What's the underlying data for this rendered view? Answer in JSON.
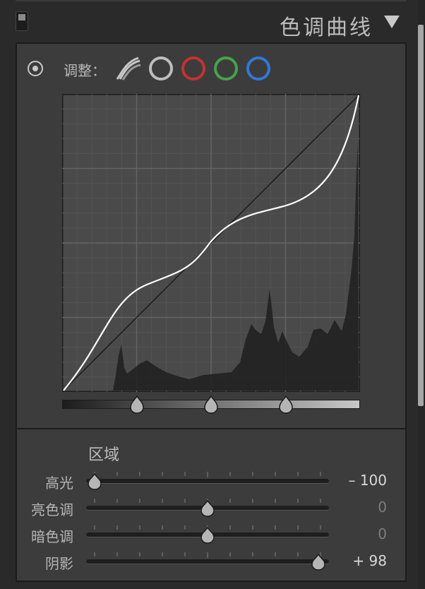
{
  "panel": {
    "title": "色调曲线",
    "adjust_label": "调整：",
    "channels": [
      {
        "name": "rgb",
        "color": "#bdbdbd"
      },
      {
        "name": "red",
        "color": "#c73131"
      },
      {
        "name": "green",
        "color": "#43a547"
      },
      {
        "name": "blue",
        "color": "#2f79d8"
      }
    ]
  },
  "curve": {
    "identity_line": true,
    "split_points": [
      25,
      50,
      75
    ]
  },
  "region": {
    "title": "区域",
    "sliders": [
      {
        "label": "高光",
        "value": -100,
        "display": "– 100"
      },
      {
        "label": "亮色调",
        "value": 0,
        "display": "0"
      },
      {
        "label": "暗色调",
        "value": 0,
        "display": "0"
      },
      {
        "label": "阴影",
        "value": 98,
        "display": "+ 98"
      }
    ]
  }
}
